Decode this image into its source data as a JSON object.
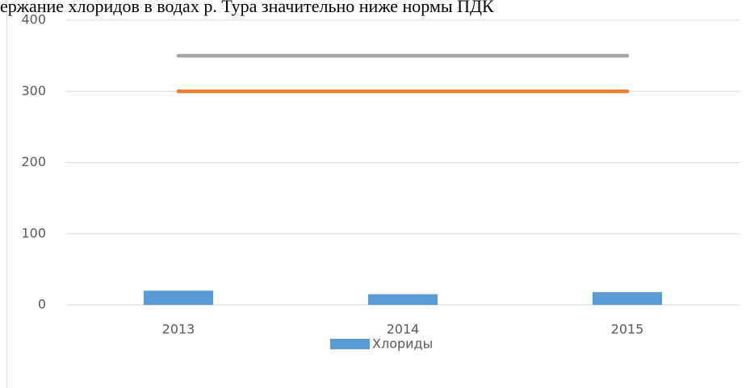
{
  "chart_data": {
    "type": "bar",
    "title": "ержание хлоридов в водах р. Тура значительно ниже нормы ПДК",
    "categories": [
      "2013",
      "2014",
      "2015"
    ],
    "series": [
      {
        "name": "Хлориды",
        "color": "#5b9bd5",
        "type": "bar",
        "values": [
          20,
          15,
          18
        ]
      },
      {
        "color": "#a5a5a5",
        "type": "line",
        "values": [
          350,
          350,
          350
        ]
      },
      {
        "color": "#ed7d31",
        "type": "line",
        "values": [
          300,
          300,
          300
        ]
      }
    ],
    "ylim": [
      0,
      400
    ],
    "yticks": [
      0,
      100,
      200,
      300,
      400
    ],
    "grid": true,
    "legend": "bottom"
  }
}
